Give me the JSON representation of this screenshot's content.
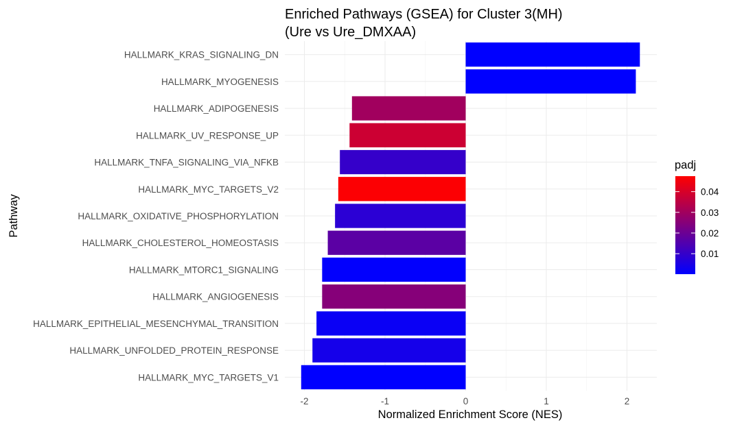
{
  "chart_data": {
    "type": "bar",
    "orientation": "horizontal",
    "title": "Enriched Pathways (GSEA) for Cluster 3(MH)",
    "subtitle": "(Ure vs Ure_DMXAA)",
    "xlabel": "Normalized Enrichment Score (NES)",
    "ylabel": "Pathway",
    "xlim": [
      -2.2,
      2.38
    ],
    "x_ticks": [
      -2,
      -1,
      0,
      1,
      2
    ],
    "x_tick_labels": [
      "-2",
      "-1",
      "0",
      "1",
      "2"
    ],
    "grid": true,
    "categories": [
      "HALLMARK_KRAS_SIGNALING_DN",
      "HALLMARK_MYOGENESIS",
      "HALLMARK_ADIPOGENESIS",
      "HALLMARK_UV_RESPONSE_UP",
      "HALLMARK_TNFA_SIGNALING_VIA_NFKB",
      "HALLMARK_MYC_TARGETS_V2",
      "HALLMARK_OXIDATIVE_PHOSPHORYLATION",
      "HALLMARK_CHOLESTEROL_HOMEOSTASIS",
      "HALLMARK_MTORC1_SIGNALING",
      "HALLMARK_ANGIOGENESIS",
      "HALLMARK_EPITHELIAL_MESENCHYMAL_TRANSITION",
      "HALLMARK_UNFOLDED_PROTEIN_RESPONSE",
      "HALLMARK_MYC_TARGETS_V1"
    ],
    "values": [
      2.16,
      2.11,
      -1.41,
      -1.44,
      -1.56,
      -1.58,
      -1.62,
      -1.71,
      -1.78,
      -1.78,
      -1.85,
      -1.9,
      -2.04
    ],
    "padj": [
      0.0001,
      0.0001,
      0.03,
      0.038,
      0.01,
      0.047,
      0.008,
      0.017,
      0.0005,
      0.025,
      0.002,
      0.004,
      0.0001
    ],
    "legend": {
      "title": "padj",
      "position": "right",
      "ticks": [
        0.01,
        0.02,
        0.03,
        0.04
      ],
      "tick_labels": [
        "0.01",
        "0.02",
        "0.03",
        "0.04"
      ],
      "range": [
        0.0001,
        0.0475
      ],
      "low_color": "#0000ff",
      "high_color": "#ff0000"
    }
  }
}
